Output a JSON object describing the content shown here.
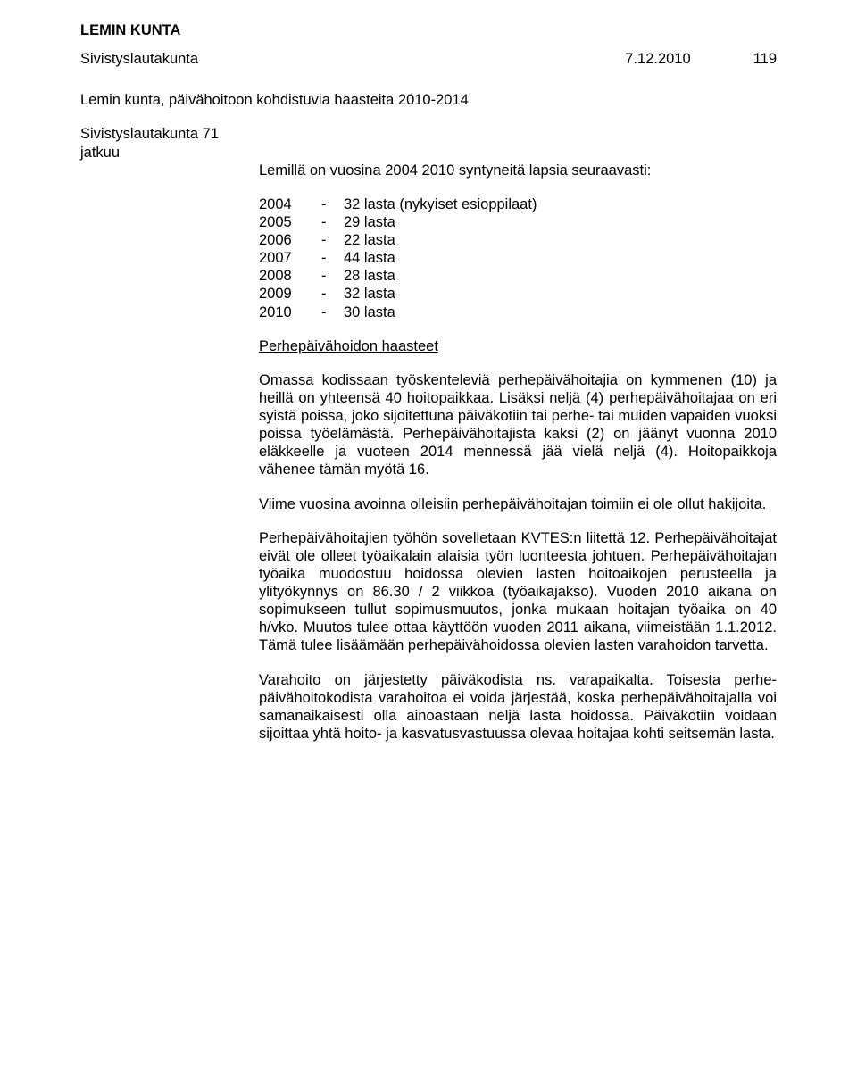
{
  "header": {
    "org": "LEMIN KUNTA",
    "board": "Sivistyslautakunta",
    "date": "7.12.2010",
    "pageno": "119"
  },
  "topic": {
    "title": "Lemin kunta, päivähoitoon kohdistuvia haasteita 2010-2014",
    "section": "Sivistyslautakunta 71",
    "continues": "jatkuu"
  },
  "intro": "Lemillä on vuosina 2004 2010 syntyneitä lapsia seuraavasti:",
  "years": [
    {
      "year": "2004",
      "dash": "-",
      "text": "32 lasta (nykyiset esioppilaat)"
    },
    {
      "year": "2005",
      "dash": "-",
      "text": "29 lasta"
    },
    {
      "year": "2006",
      "dash": "-",
      "text": "22 lasta"
    },
    {
      "year": "2007",
      "dash": "-",
      "text": "44 lasta"
    },
    {
      "year": "2008",
      "dash": "-",
      "text": "28 lasta"
    },
    {
      "year": "2009",
      "dash": "-",
      "text": "32 lasta"
    },
    {
      "year": "2010",
      "dash": "-",
      "text": "30 lasta"
    }
  ],
  "subheading": "Perhepäivähoidon haasteet",
  "paragraphs": {
    "p1": "Omassa kodissaan työskenteleviä perhepäivähoitajia on kymmenen (10) ja heillä on yhteensä 40 hoitopaikkaa. Lisäksi neljä (4) perhe­päivähoitajaa on eri syistä poissa, joko sijoitettuna päiväkotiin tai perhe- tai muiden vapaiden vuoksi poissa työelämästä. Perhepäivähoitajista kaksi (2) on jäänyt vuonna 2010 eläkkeelle ja vuoteen 2014 mennessä jää vielä neljä (4). Hoitopaikkoja vähenee tämän myötä 16.",
    "p2": "Viime vuosina avoinna olleisiin perhepäivähoitajan toimiin ei ole ollut hakijoita.",
    "p3": "Perhepäivähoitajien työhön sovelletaan KVTES:n liitettä 12. Perhe­päivähoitajat eivät ole olleet työaikalain alaisia työn luonteesta johtuen. Perhepäivähoitajan työaika muodostuu hoidossa olevien lasten hoito­aikojen perusteella ja ylityökynnys on 86.30 / 2 viikkoa (työaikajakso). Vuoden 2010 aikana on sopimukseen tullut sopimusmuutos, jonka mukaan hoitajan työaika on 40 h/vko. Muutos tulee ottaa käyttöön vuoden 2011 aikana, viimeistään 1.1.2012. Tämä tulee lisäämään perhepäivähoidossa olevien lasten varahoidon tarvetta.",
    "p4": "Varahoito on järjestetty päiväkodista ns. varapaikalta. Toisesta perhe­päivähoitokodista varahoitoa ei voida järjestää, koska perhepäivä­hoitajalla voi samanaikaisesti olla ainoastaan neljä lasta hoidossa. Päiväkotiin voidaan sijoittaa yhtä hoito- ja kasvatusvastuussa olevaa hoitajaa kohti seitsemän lasta."
  }
}
